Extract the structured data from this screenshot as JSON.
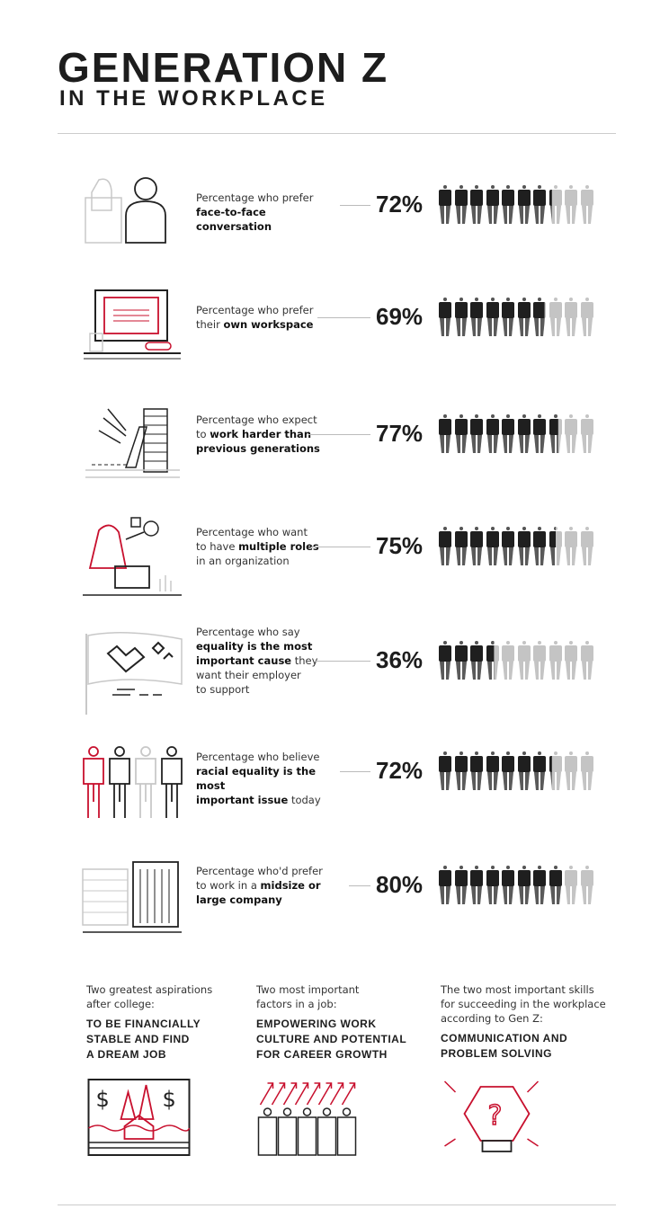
{
  "title": {
    "line1": "GENERATION Z",
    "line2": "IN THE WORKPLACE"
  },
  "colors": {
    "accent": "#c8102e",
    "dark": "#1d1d1d",
    "light_figure": "#c4c4c4"
  },
  "stats": [
    {
      "icon": "two-people-conversation-icon",
      "percent": 72,
      "label": "72%",
      "lines": [
        [
          {
            "t": "Percentage who prefer",
            "b": false
          }
        ],
        [
          {
            "t": "face-to-face conversation",
            "b": true
          }
        ]
      ]
    },
    {
      "icon": "computer-workspace-icon",
      "percent": 69,
      "label": "69%",
      "lines": [
        [
          {
            "t": "Percentage who prefer",
            "b": false
          }
        ],
        [
          {
            "t": "their ",
            "b": false
          },
          {
            "t": "own workspace",
            "b": true
          }
        ]
      ]
    },
    {
      "icon": "laptop-paper-stack-icon",
      "percent": 77,
      "label": "77%",
      "lines": [
        [
          {
            "t": "Percentage who expect",
            "b": false
          }
        ],
        [
          {
            "t": "to ",
            "b": false
          },
          {
            "t": "work harder than",
            "b": true
          }
        ],
        [
          {
            "t": "previous generations",
            "b": true
          }
        ]
      ]
    },
    {
      "icon": "multitasking-person-icon",
      "percent": 75,
      "label": "75%",
      "lines": [
        [
          {
            "t": "Percentage who want",
            "b": false
          }
        ],
        [
          {
            "t": "to have ",
            "b": false
          },
          {
            "t": "multiple roles",
            "b": true
          }
        ],
        [
          {
            "t": "in an organization",
            "b": false
          }
        ]
      ]
    },
    {
      "icon": "equality-flag-icon",
      "percent": 36,
      "label": "36%",
      "lines": [
        [
          {
            "t": "Percentage who say",
            "b": false
          }
        ],
        [
          {
            "t": "equality is the most",
            "b": true
          }
        ],
        [
          {
            "t": "important cause",
            "b": true
          },
          {
            "t": " they",
            "b": false
          }
        ],
        [
          {
            "t": "want their employer",
            "b": false
          }
        ],
        [
          {
            "t": "to support",
            "b": false
          }
        ]
      ]
    },
    {
      "icon": "diverse-people-icon",
      "percent": 72,
      "label": "72%",
      "lines": [
        [
          {
            "t": "Percentage who believe",
            "b": false
          }
        ],
        [
          {
            "t": "racial equality is the most",
            "b": true
          }
        ],
        [
          {
            "t": "important issue",
            "b": true
          },
          {
            "t": " today",
            "b": false
          }
        ]
      ]
    },
    {
      "icon": "office-buildings-icon",
      "percent": 80,
      "label": "80%",
      "lines": [
        [
          {
            "t": "Percentage who'd prefer",
            "b": false
          }
        ],
        [
          {
            "t": "to work in a ",
            "b": false
          },
          {
            "t": "midsize or",
            "b": true
          }
        ],
        [
          {
            "t": "large company",
            "b": true
          }
        ]
      ]
    }
  ],
  "bottom": [
    {
      "sub": [
        "Two greatest aspirations",
        "after college:"
      ],
      "head": [
        "TO BE FINANCIALLY",
        "STABLE AND FIND",
        "A DREAM JOB"
      ],
      "icon": "money-house-icon"
    },
    {
      "sub": [
        "Two most important",
        "factors in a job:"
      ],
      "head": [
        "EMPOWERING WORK",
        "CULTURE AND POTENTIAL",
        "FOR CAREER GROWTH"
      ],
      "icon": "growing-team-icon"
    },
    {
      "sub": [
        "The two most important skills",
        "for succeeding in the workplace",
        "according to Gen Z:"
      ],
      "head": [
        "COMMUNICATION AND",
        "PROBLEM SOLVING"
      ],
      "icon": "lightbulb-question-icon"
    }
  ]
}
